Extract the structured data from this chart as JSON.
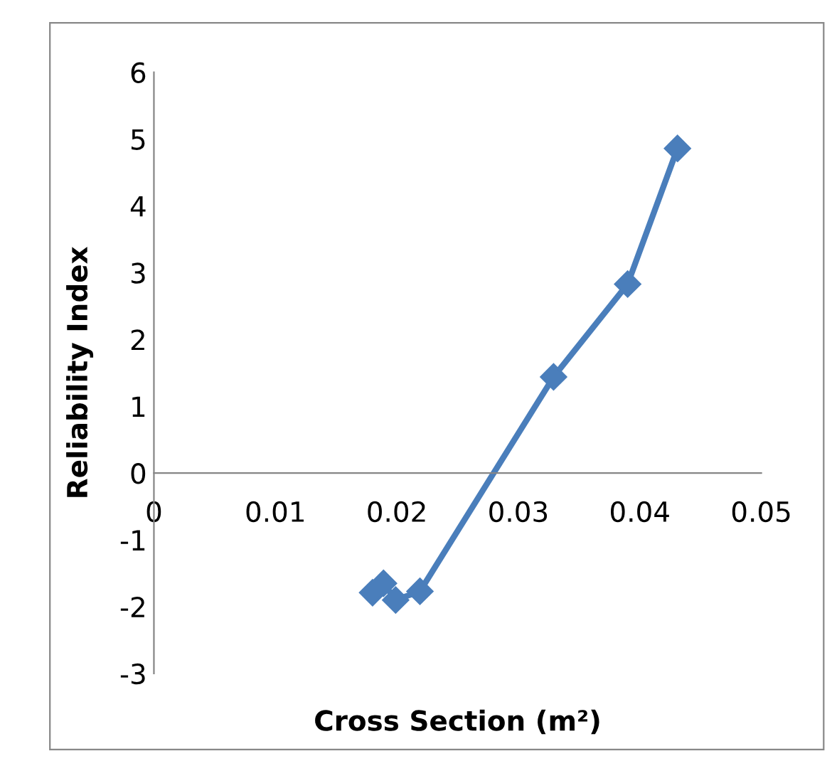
{
  "chart_data": {
    "type": "line",
    "xlabel": "Cross Section (m²)",
    "ylabel": "Reliability Index",
    "x": [
      0.018,
      0.0189,
      0.0199,
      0.0219,
      0.0329,
      0.039,
      0.0431
    ],
    "series": [
      {
        "color": "#4a7ebb",
        "values": [
          -1.79,
          -1.65,
          -1.9,
          -1.77,
          1.44,
          2.83,
          4.86
        ]
      }
    ],
    "xlim": [
      0,
      0.05
    ],
    "xticks": [
      {
        "value": 0,
        "label": "0"
      },
      0.01,
      0.02,
      0.03,
      0.04,
      0.05
    ],
    "ylim": [
      -3,
      6
    ],
    "yticks": [
      -3,
      -2,
      -1,
      0,
      1,
      2,
      3,
      4,
      5,
      6
    ],
    "grid": false,
    "marker": "diamond",
    "line_style": "solid"
  }
}
